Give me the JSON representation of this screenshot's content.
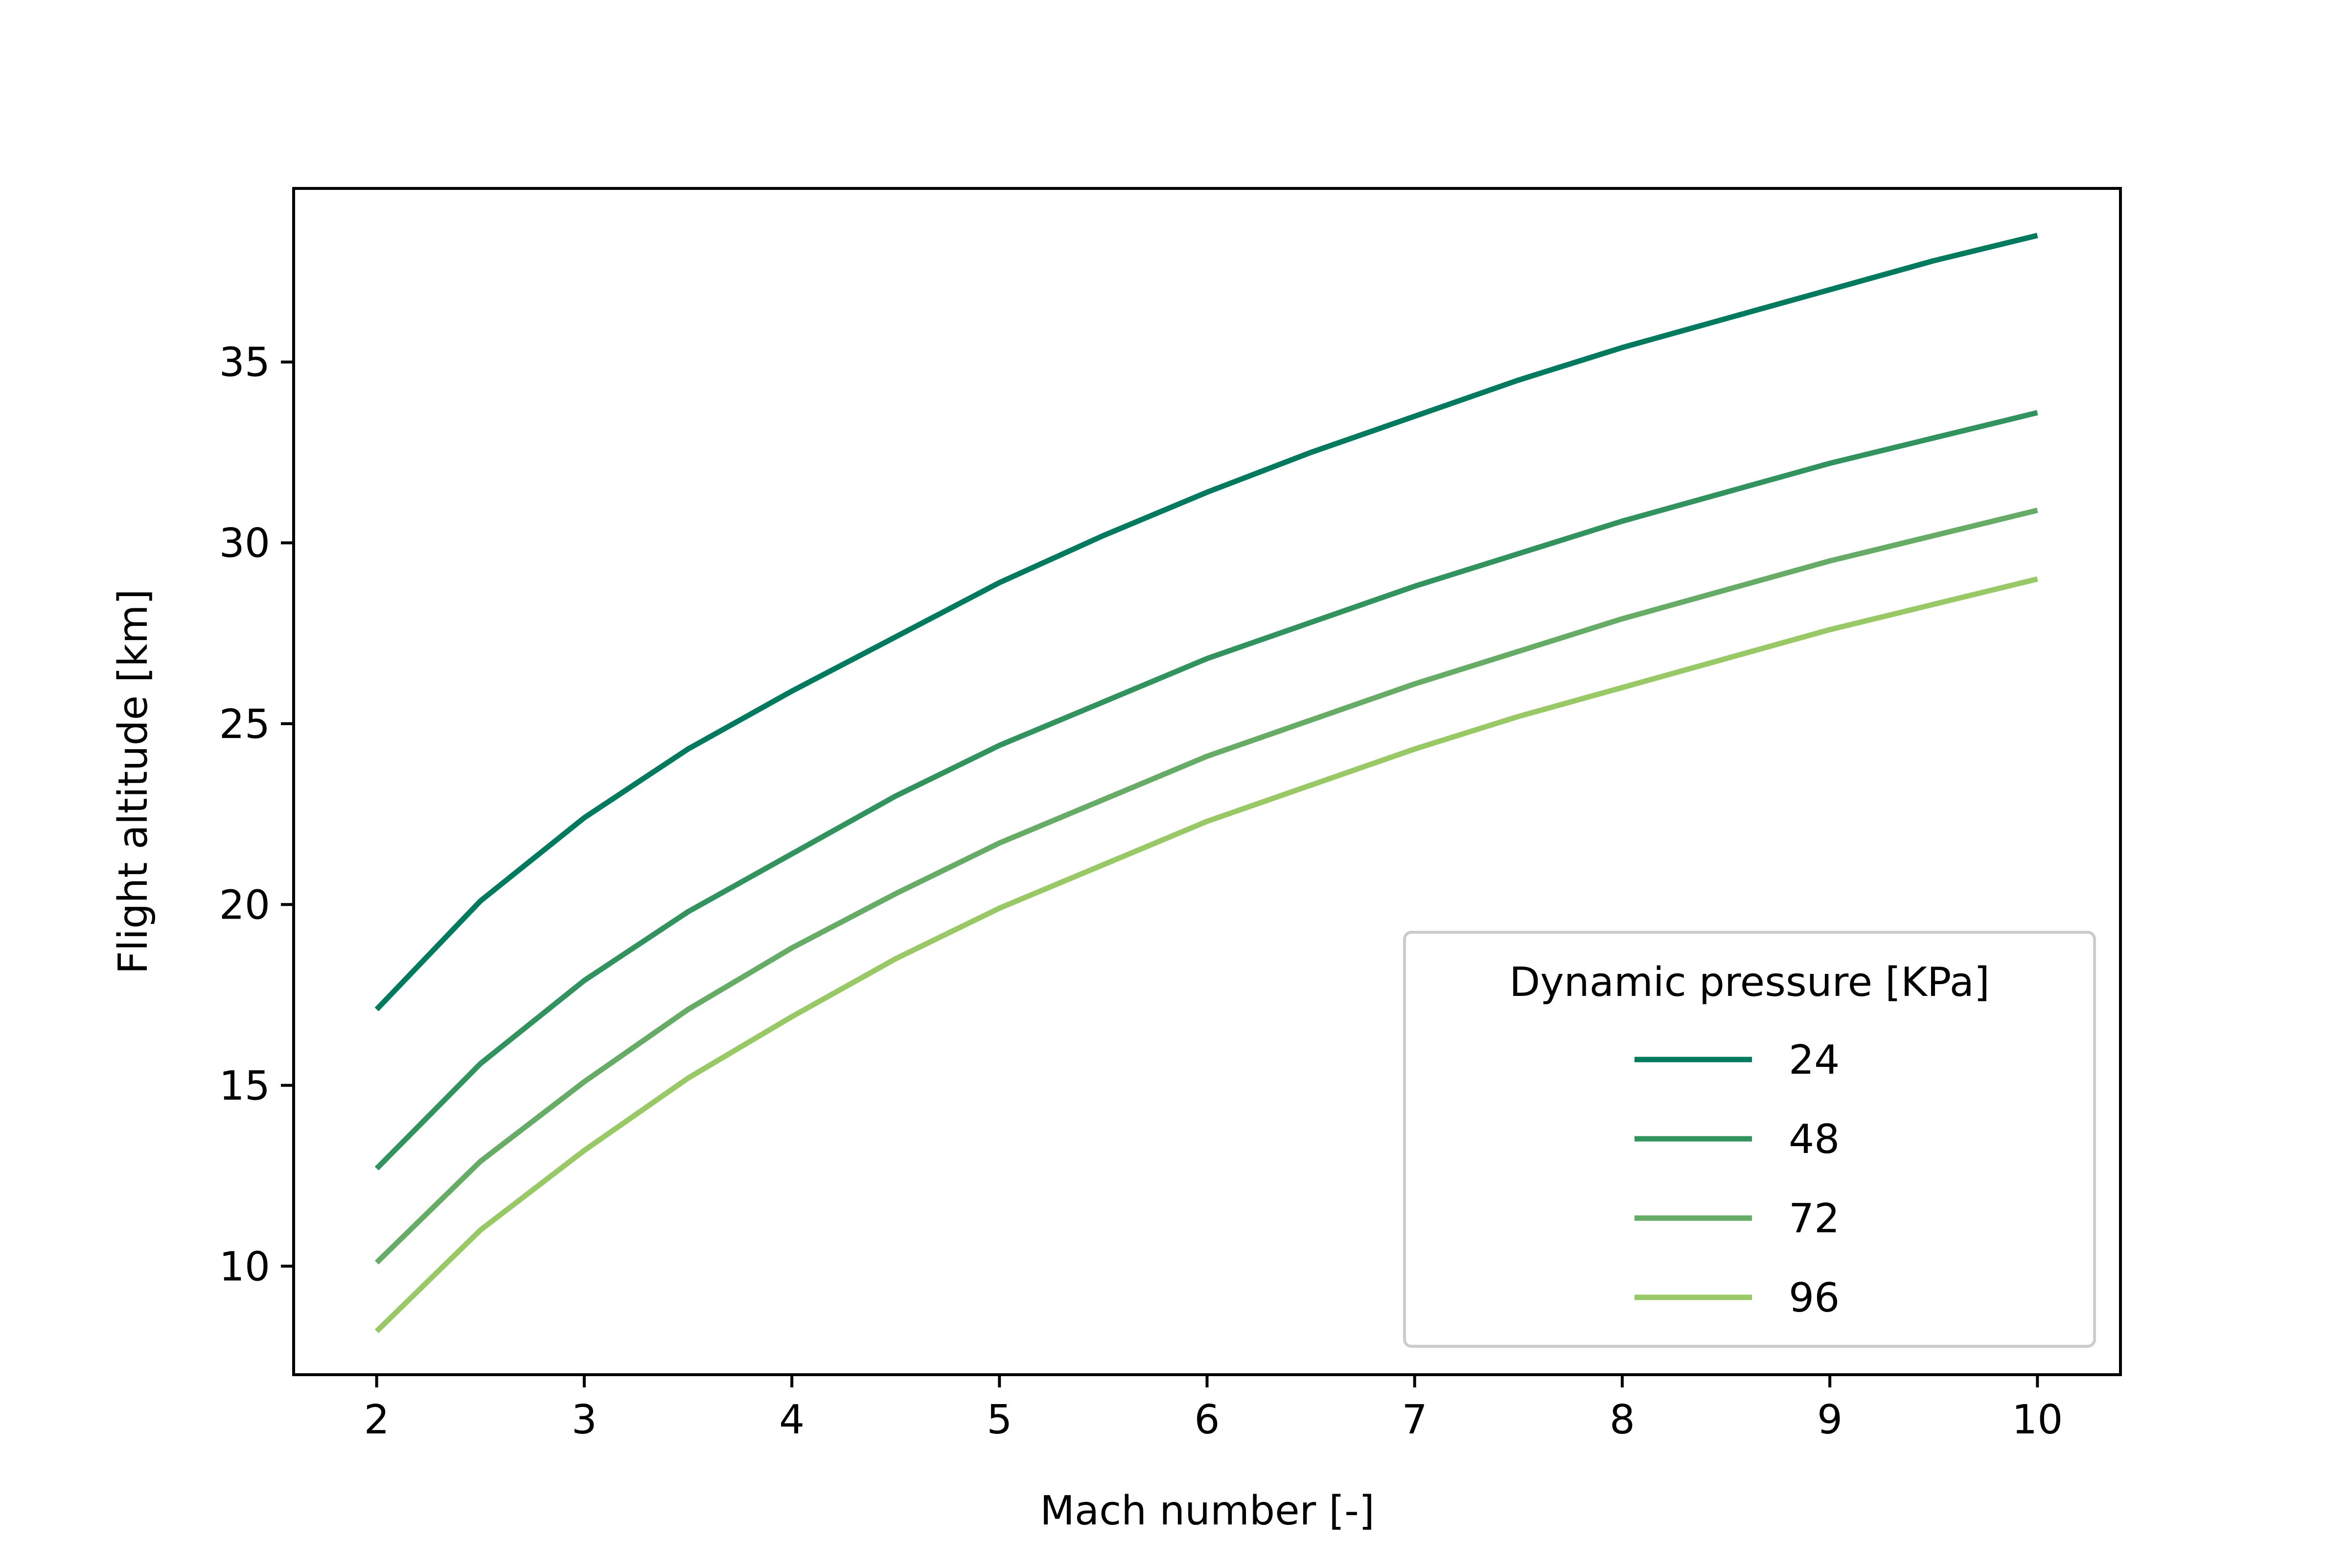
{
  "chart_data": {
    "type": "line",
    "title": "",
    "xlabel": "Mach number [-]",
    "ylabel": "Flight altitude [km]",
    "xlim": [
      1.6,
      10.4
    ],
    "ylim": [
      7.0,
      39.8
    ],
    "xticks": [
      2,
      3,
      4,
      5,
      6,
      7,
      8,
      9,
      10
    ],
    "yticks": [
      10,
      15,
      20,
      25,
      30,
      35
    ],
    "grid": false,
    "legend": {
      "title": "Dynamic pressure [KPa]",
      "position": "lower-right"
    },
    "x": [
      2.0,
      2.5,
      3.0,
      3.5,
      4.0,
      4.5,
      5.0,
      5.5,
      6.0,
      6.5,
      7.0,
      7.5,
      8.0,
      8.5,
      9.0,
      9.5,
      10.0
    ],
    "series": [
      {
        "name": "24",
        "color": "#007a5e",
        "values": [
          17.1,
          20.1,
          22.4,
          24.3,
          25.9,
          27.4,
          28.9,
          30.2,
          31.4,
          32.5,
          33.5,
          34.5,
          35.4,
          36.2,
          37.0,
          37.8,
          38.5
        ]
      },
      {
        "name": "48",
        "color": "#33935e",
        "values": [
          12.7,
          15.6,
          17.9,
          19.8,
          21.4,
          23.0,
          24.4,
          25.6,
          26.8,
          27.8,
          28.8,
          29.7,
          30.6,
          31.4,
          32.2,
          32.9,
          33.6
        ]
      },
      {
        "name": "72",
        "color": "#66ab66",
        "values": [
          10.1,
          12.9,
          15.1,
          17.1,
          18.8,
          20.3,
          21.7,
          22.9,
          24.1,
          25.1,
          26.1,
          27.0,
          27.9,
          28.7,
          29.5,
          30.2,
          30.9
        ]
      },
      {
        "name": "96",
        "color": "#99c866",
        "values": [
          8.2,
          11.0,
          13.2,
          15.2,
          16.9,
          18.5,
          19.9,
          21.1,
          22.3,
          23.3,
          24.3,
          25.2,
          26.0,
          26.8,
          27.6,
          28.3,
          29.0
        ]
      }
    ]
  }
}
